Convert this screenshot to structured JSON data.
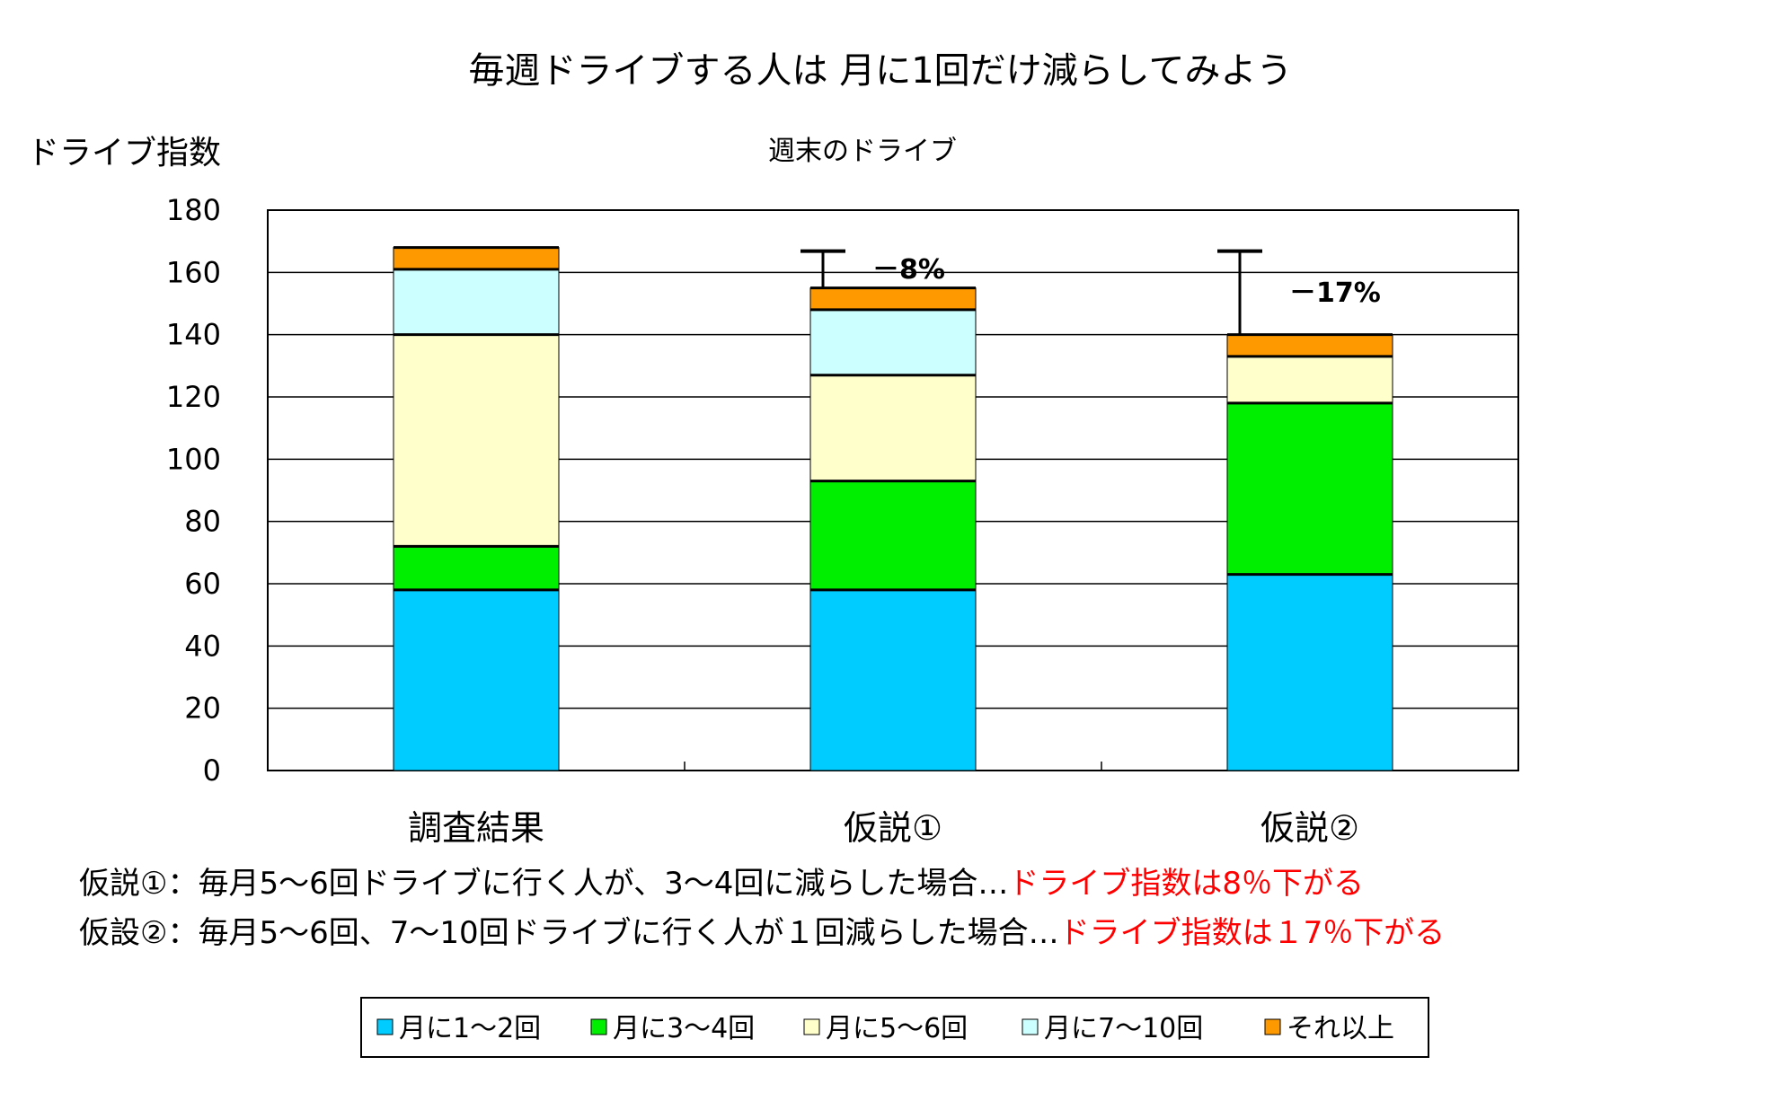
{
  "chart_data": {
    "type": "bar",
    "stacked": true,
    "title": "毎週ドライブする人は 月に1回だけ減らしてみよう",
    "subtitle": "週末のドライブ",
    "ylabel": "ドライブ指数",
    "ylim": [
      0,
      180
    ],
    "yticks": [
      "0",
      "20",
      "40",
      "60",
      "80",
      "100",
      "120",
      "140",
      "160",
      "180"
    ],
    "categories": [
      "調査結果",
      "仮説①",
      "仮説②"
    ],
    "series": [
      {
        "name": "月に1～2回",
        "color": "#00ccff",
        "values": [
          58,
          58,
          63
        ]
      },
      {
        "name": "月に3～4回",
        "color": "#00ee00",
        "values": [
          14,
          35,
          55
        ]
      },
      {
        "name": "月に5～6回",
        "color": "#ffffcc",
        "values": [
          68,
          34,
          15
        ]
      },
      {
        "name": "月に7～10回",
        "color": "#ccffff",
        "values": [
          21,
          21,
          0
        ]
      },
      {
        "name": "それ以上",
        "color": "#ff9900",
        "values": [
          7,
          7,
          7
        ]
      }
    ],
    "reference_value": 168,
    "annotations": [
      {
        "category": "仮説①",
        "label": "－8%"
      },
      {
        "category": "仮説②",
        "label": "－17%"
      }
    ],
    "grid": true,
    "legend": "bottom"
  },
  "notes": [
    {
      "prefix": "仮説①：毎月5～6回ドライブに行く人が、3～4回に減らした場合…",
      "highlight": "ドライブ指数は8％下がる"
    },
    {
      "prefix": "仮設②：毎月5～6回、7～10回ドライブに行く人が１回減らした場合…",
      "highlight": "ドライブ指数は１7％下がる"
    }
  ]
}
